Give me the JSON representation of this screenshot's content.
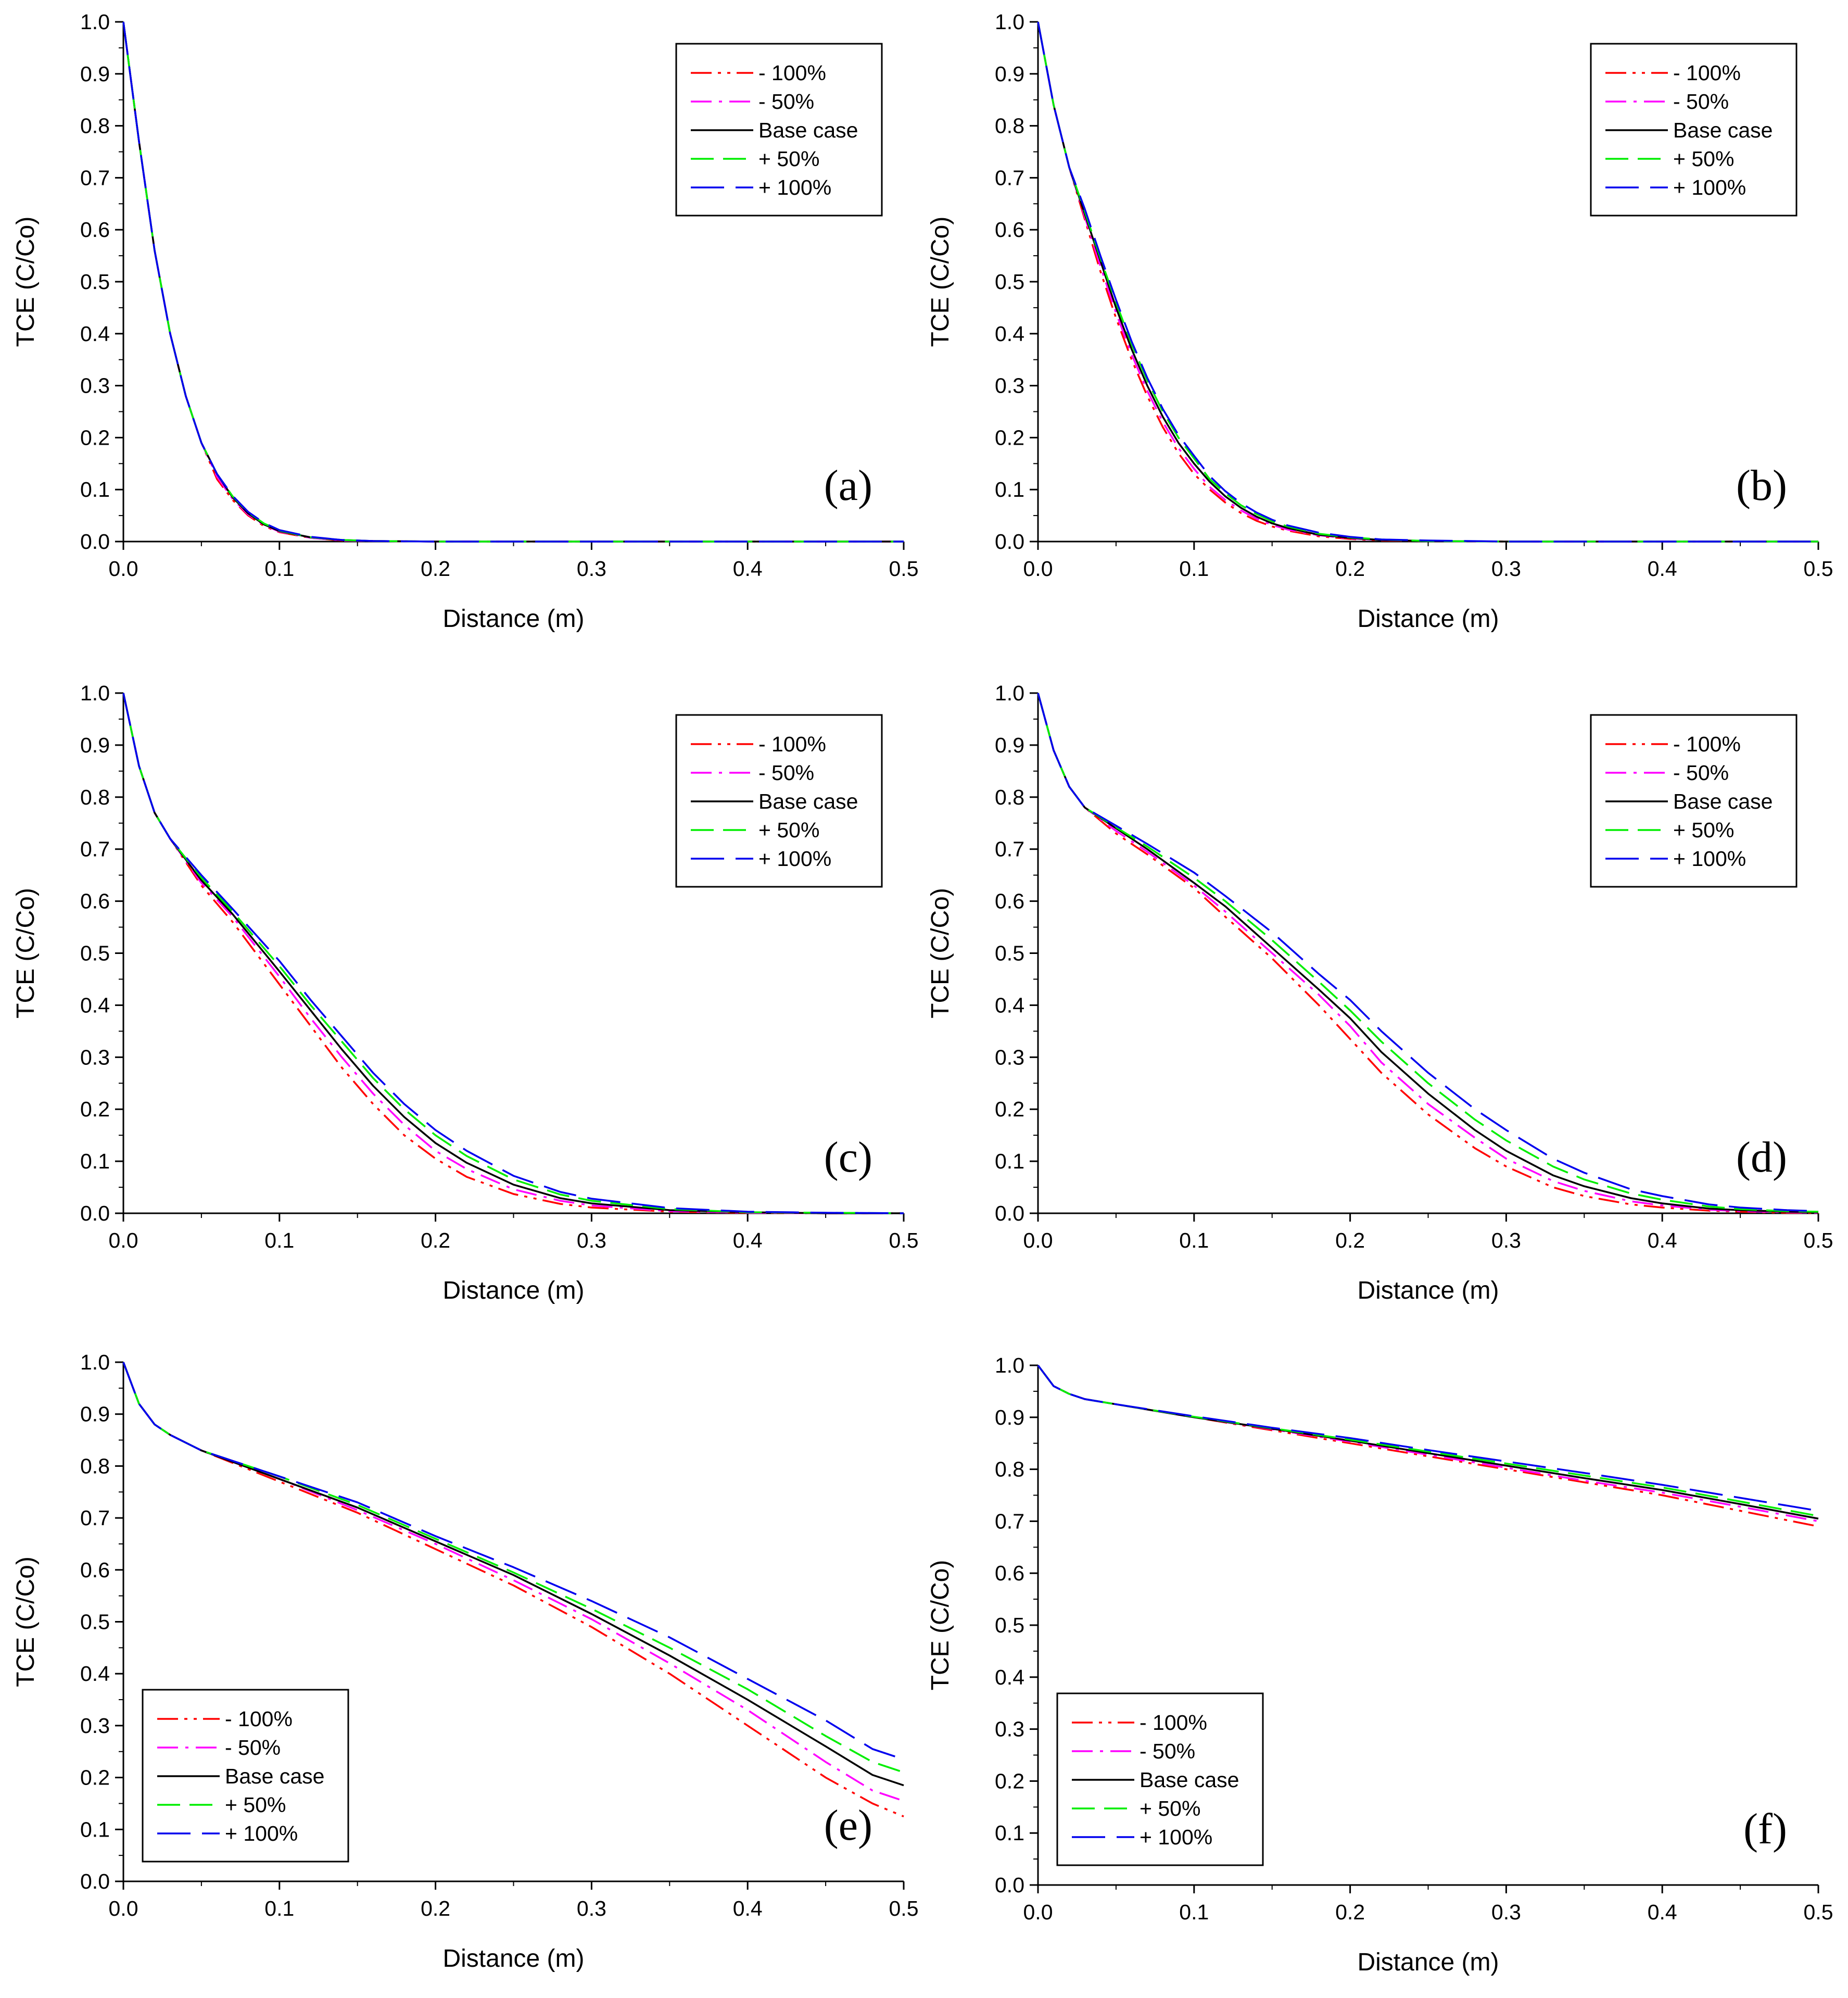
{
  "figure": {
    "series_styles": [
      {
        "name": "- 100%",
        "color": "#ff0000",
        "dash": "dashdotdot"
      },
      {
        "name": "- 50%",
        "color": "#ff00ff",
        "dash": "dashdot"
      },
      {
        "name": "Base case",
        "color": "#000000",
        "dash": "solid"
      },
      {
        "name": "+ 50%",
        "color": "#00ee00",
        "dash": "dashed"
      },
      {
        "name": "+ 100%",
        "color": "#0000ee",
        "dash": "longdash"
      }
    ]
  },
  "chart_data": [
    {
      "type": "line",
      "panel": "(a)",
      "xlabel": "Distance (m)",
      "ylabel": "TCE (C/Co)",
      "xlim": [
        0,
        0.5
      ],
      "ylim": [
        0,
        1.0
      ],
      "xticks": [
        "0.0",
        "0.1",
        "0.2",
        "0.3",
        "0.4",
        "0.5"
      ],
      "yticks": [
        "0.0",
        "0.1",
        "0.2",
        "0.3",
        "0.4",
        "0.5",
        "0.6",
        "0.7",
        "0.8",
        "0.9",
        "1.0"
      ],
      "legend_position": "top-right",
      "x": [
        0,
        0.01,
        0.02,
        0.03,
        0.04,
        0.05,
        0.06,
        0.07,
        0.08,
        0.09,
        0.1,
        0.12,
        0.14,
        0.16,
        0.2,
        0.3,
        0.4,
        0.5
      ],
      "series": [
        {
          "name": "- 100%",
          "values": [
            1.0,
            0.77,
            0.56,
            0.4,
            0.28,
            0.19,
            0.12,
            0.08,
            0.05,
            0.03,
            0.018,
            0.007,
            0.002,
            0.001,
            0,
            0,
            0,
            0
          ]
        },
        {
          "name": "- 50%",
          "values": [
            1.0,
            0.77,
            0.56,
            0.4,
            0.28,
            0.19,
            0.125,
            0.082,
            0.052,
            0.032,
            0.019,
            0.007,
            0.002,
            0.001,
            0,
            0,
            0,
            0
          ]
        },
        {
          "name": "Base case",
          "values": [
            1.0,
            0.77,
            0.56,
            0.4,
            0.28,
            0.19,
            0.13,
            0.085,
            0.054,
            0.033,
            0.02,
            0.008,
            0.003,
            0.001,
            0,
            0,
            0,
            0
          ]
        },
        {
          "name": "+ 50%",
          "values": [
            1.0,
            0.77,
            0.56,
            0.4,
            0.28,
            0.19,
            0.13,
            0.087,
            0.056,
            0.035,
            0.021,
            0.008,
            0.003,
            0.001,
            0,
            0,
            0,
            0
          ]
        },
        {
          "name": "+ 100%",
          "values": [
            1.0,
            0.77,
            0.56,
            0.4,
            0.28,
            0.19,
            0.13,
            0.088,
            0.057,
            0.036,
            0.022,
            0.009,
            0.003,
            0.001,
            0,
            0,
            0,
            0
          ]
        }
      ]
    },
    {
      "type": "line",
      "panel": "(b)",
      "xlabel": "Distance (m)",
      "ylabel": "TCE (C/Co)",
      "xlim": [
        0,
        0.5
      ],
      "ylim": [
        0,
        1.0
      ],
      "xticks": [
        "0.0",
        "0.1",
        "0.2",
        "0.3",
        "0.4",
        "0.5"
      ],
      "yticks": [
        "0.0",
        "0.1",
        "0.2",
        "0.3",
        "0.4",
        "0.5",
        "0.6",
        "0.7",
        "0.8",
        "0.9",
        "1.0"
      ],
      "legend_position": "top-right",
      "x": [
        0,
        0.01,
        0.02,
        0.03,
        0.04,
        0.05,
        0.06,
        0.07,
        0.08,
        0.09,
        0.1,
        0.11,
        0.12,
        0.13,
        0.14,
        0.15,
        0.16,
        0.18,
        0.2,
        0.22,
        0.25,
        0.3,
        0.4,
        0.5
      ],
      "series": [
        {
          "name": "- 100%",
          "values": [
            1.0,
            0.84,
            0.72,
            0.62,
            0.52,
            0.43,
            0.35,
            0.28,
            0.22,
            0.17,
            0.13,
            0.1,
            0.075,
            0.055,
            0.04,
            0.029,
            0.021,
            0.01,
            0.005,
            0.002,
            0.001,
            0,
            0,
            0
          ]
        },
        {
          "name": "- 50%",
          "values": [
            1.0,
            0.84,
            0.72,
            0.625,
            0.53,
            0.44,
            0.36,
            0.29,
            0.23,
            0.18,
            0.14,
            0.105,
            0.08,
            0.06,
            0.044,
            0.032,
            0.023,
            0.012,
            0.006,
            0.003,
            0.001,
            0,
            0,
            0
          ]
        },
        {
          "name": "Base case",
          "values": [
            1.0,
            0.84,
            0.72,
            0.63,
            0.54,
            0.45,
            0.37,
            0.3,
            0.24,
            0.19,
            0.15,
            0.115,
            0.087,
            0.065,
            0.048,
            0.035,
            0.026,
            0.013,
            0.007,
            0.003,
            0.001,
            0,
            0,
            0
          ]
        },
        {
          "name": "+ 50%",
          "values": [
            1.0,
            0.84,
            0.72,
            0.635,
            0.545,
            0.46,
            0.38,
            0.31,
            0.25,
            0.2,
            0.16,
            0.12,
            0.093,
            0.07,
            0.053,
            0.039,
            0.029,
            0.015,
            0.008,
            0.004,
            0.001,
            0,
            0,
            0
          ]
        },
        {
          "name": "+ 100%",
          "values": [
            1.0,
            0.84,
            0.72,
            0.64,
            0.55,
            0.465,
            0.385,
            0.315,
            0.255,
            0.205,
            0.165,
            0.126,
            0.097,
            0.074,
            0.056,
            0.042,
            0.031,
            0.017,
            0.009,
            0.004,
            0.002,
            0,
            0,
            0
          ]
        }
      ]
    },
    {
      "type": "line",
      "panel": "(c)",
      "xlabel": "Distance (m)",
      "ylabel": "TCE (C/Co)",
      "xlim": [
        0,
        0.5
      ],
      "ylim": [
        0,
        1.0
      ],
      "xticks": [
        "0.0",
        "0.1",
        "0.2",
        "0.3",
        "0.4",
        "0.5"
      ],
      "yticks": [
        "0.0",
        "0.1",
        "0.2",
        "0.3",
        "0.4",
        "0.5",
        "0.6",
        "0.7",
        "0.8",
        "0.9",
        "1.0"
      ],
      "legend_position": "top-right",
      "x": [
        0,
        0.01,
        0.02,
        0.03,
        0.05,
        0.07,
        0.1,
        0.12,
        0.14,
        0.16,
        0.18,
        0.2,
        0.22,
        0.25,
        0.28,
        0.3,
        0.35,
        0.4,
        0.45,
        0.5
      ],
      "series": [
        {
          "name": "- 100%",
          "values": [
            1.0,
            0.86,
            0.77,
            0.72,
            0.63,
            0.56,
            0.44,
            0.36,
            0.28,
            0.21,
            0.15,
            0.105,
            0.07,
            0.037,
            0.018,
            0.011,
            0.003,
            0.001,
            0,
            0
          ]
        },
        {
          "name": "- 50%",
          "values": [
            1.0,
            0.86,
            0.77,
            0.72,
            0.635,
            0.57,
            0.455,
            0.375,
            0.3,
            0.23,
            0.17,
            0.12,
            0.085,
            0.046,
            0.024,
            0.015,
            0.004,
            0.001,
            0,
            0
          ]
        },
        {
          "name": "Base case",
          "values": [
            1.0,
            0.86,
            0.77,
            0.72,
            0.64,
            0.575,
            0.465,
            0.39,
            0.315,
            0.245,
            0.185,
            0.135,
            0.097,
            0.055,
            0.029,
            0.019,
            0.006,
            0.002,
            0,
            0
          ]
        },
        {
          "name": "+ 50%",
          "values": [
            1.0,
            0.86,
            0.77,
            0.72,
            0.645,
            0.58,
            0.475,
            0.4,
            0.33,
            0.26,
            0.2,
            0.15,
            0.11,
            0.065,
            0.036,
            0.024,
            0.008,
            0.002,
            0.001,
            0
          ]
        },
        {
          "name": "+ 100%",
          "values": [
            1.0,
            0.86,
            0.77,
            0.72,
            0.65,
            0.585,
            0.485,
            0.41,
            0.34,
            0.27,
            0.21,
            0.16,
            0.12,
            0.072,
            0.041,
            0.028,
            0.01,
            0.003,
            0.001,
            0
          ]
        }
      ]
    },
    {
      "type": "line",
      "panel": "(d)",
      "xlabel": "Distance (m)",
      "ylabel": "TCE (C/Co)",
      "xlim": [
        0,
        0.5
      ],
      "ylim": [
        0,
        1.0
      ],
      "xticks": [
        "0.0",
        "0.1",
        "0.2",
        "0.3",
        "0.4",
        "0.5"
      ],
      "yticks": [
        "0.0",
        "0.1",
        "0.2",
        "0.3",
        "0.4",
        "0.5",
        "0.6",
        "0.7",
        "0.8",
        "0.9",
        "1.0"
      ],
      "legend_position": "top-right",
      "x": [
        0,
        0.01,
        0.02,
        0.03,
        0.05,
        0.07,
        0.1,
        0.12,
        0.15,
        0.18,
        0.2,
        0.22,
        0.25,
        0.28,
        0.3,
        0.33,
        0.35,
        0.38,
        0.4,
        0.43,
        0.45,
        0.48,
        0.5
      ],
      "series": [
        {
          "name": "- 100%",
          "values": [
            1.0,
            0.89,
            0.82,
            0.78,
            0.73,
            0.69,
            0.625,
            0.57,
            0.49,
            0.4,
            0.335,
            0.27,
            0.19,
            0.125,
            0.09,
            0.05,
            0.033,
            0.017,
            0.011,
            0.005,
            0.003,
            0.001,
            0.001
          ]
        },
        {
          "name": "- 50%",
          "values": [
            1.0,
            0.89,
            0.82,
            0.78,
            0.735,
            0.695,
            0.63,
            0.58,
            0.5,
            0.42,
            0.36,
            0.29,
            0.21,
            0.145,
            0.105,
            0.062,
            0.043,
            0.023,
            0.015,
            0.007,
            0.004,
            0.002,
            0.001
          ]
        },
        {
          "name": "Base case",
          "values": [
            1.0,
            0.89,
            0.82,
            0.78,
            0.74,
            0.7,
            0.635,
            0.59,
            0.51,
            0.43,
            0.375,
            0.31,
            0.23,
            0.16,
            0.12,
            0.073,
            0.052,
            0.029,
            0.019,
            0.009,
            0.006,
            0.003,
            0.002
          ]
        },
        {
          "name": "+ 50%",
          "values": [
            1.0,
            0.89,
            0.82,
            0.78,
            0.742,
            0.705,
            0.645,
            0.6,
            0.525,
            0.445,
            0.39,
            0.33,
            0.25,
            0.18,
            0.14,
            0.09,
            0.065,
            0.038,
            0.026,
            0.013,
            0.008,
            0.004,
            0.003
          ]
        },
        {
          "name": "+ 100%",
          "values": [
            1.0,
            0.89,
            0.82,
            0.78,
            0.745,
            0.71,
            0.655,
            0.61,
            0.54,
            0.46,
            0.41,
            0.35,
            0.27,
            0.2,
            0.16,
            0.105,
            0.078,
            0.046,
            0.033,
            0.017,
            0.011,
            0.006,
            0.004
          ]
        }
      ]
    },
    {
      "type": "line",
      "panel": "(e)",
      "xlabel": "Distance (m)",
      "ylabel": "TCE (C/Co)",
      "xlim": [
        0,
        0.5
      ],
      "ylim": [
        0,
        1.0
      ],
      "xticks": [
        "0.0",
        "0.1",
        "0.2",
        "0.3",
        "0.4",
        "0.5"
      ],
      "yticks": [
        "0.0",
        "0.1",
        "0.2",
        "0.3",
        "0.4",
        "0.5",
        "0.6",
        "0.7",
        "0.8",
        "0.9",
        "1.0"
      ],
      "legend_position": "bottom-left",
      "x": [
        0,
        0.01,
        0.02,
        0.03,
        0.05,
        0.1,
        0.15,
        0.2,
        0.25,
        0.3,
        0.35,
        0.4,
        0.45,
        0.48,
        0.5
      ],
      "series": [
        {
          "name": "- 100%",
          "values": [
            1.0,
            0.92,
            0.88,
            0.86,
            0.83,
            0.77,
            0.71,
            0.64,
            0.57,
            0.49,
            0.4,
            0.3,
            0.2,
            0.15,
            0.125
          ]
        },
        {
          "name": "- 50%",
          "values": [
            1.0,
            0.92,
            0.88,
            0.86,
            0.83,
            0.775,
            0.715,
            0.65,
            0.58,
            0.505,
            0.42,
            0.33,
            0.23,
            0.175,
            0.155
          ]
        },
        {
          "name": "Base case",
          "values": [
            1.0,
            0.92,
            0.88,
            0.86,
            0.83,
            0.775,
            0.72,
            0.655,
            0.59,
            0.515,
            0.435,
            0.35,
            0.26,
            0.205,
            0.185
          ]
        },
        {
          "name": "+ 50%",
          "values": [
            1.0,
            0.92,
            0.88,
            0.86,
            0.83,
            0.78,
            0.725,
            0.66,
            0.595,
            0.525,
            0.45,
            0.37,
            0.28,
            0.23,
            0.21
          ]
        },
        {
          "name": "+ 100%",
          "values": [
            1.0,
            0.92,
            0.88,
            0.86,
            0.83,
            0.78,
            0.73,
            0.665,
            0.605,
            0.54,
            0.47,
            0.39,
            0.31,
            0.255,
            0.235
          ]
        }
      ]
    },
    {
      "type": "line",
      "panel": "(f)",
      "xlabel": "Distance (m)",
      "ylabel": "TCE (C/Co)",
      "xlim": [
        0,
        0.5
      ],
      "ylim": [
        0,
        1.0
      ],
      "xticks": [
        "0.0",
        "0.1",
        "0.2",
        "0.3",
        "0.4",
        "0.5"
      ],
      "yticks": [
        "0.0",
        "0.1",
        "0.2",
        "0.3",
        "0.4",
        "0.5",
        "0.6",
        "0.7",
        "0.8",
        "0.9",
        "1.0"
      ],
      "legend_position": "bottom-left",
      "x": [
        0,
        0.01,
        0.02,
        0.03,
        0.05,
        0.1,
        0.15,
        0.2,
        0.25,
        0.3,
        0.35,
        0.4,
        0.45,
        0.5
      ],
      "series": [
        {
          "name": "- 100%",
          "values": [
            1.0,
            0.96,
            0.945,
            0.935,
            0.925,
            0.9,
            0.875,
            0.85,
            0.825,
            0.8,
            0.775,
            0.75,
            0.72,
            0.69
          ]
        },
        {
          "name": "- 50%",
          "values": [
            1.0,
            0.96,
            0.945,
            0.935,
            0.925,
            0.9,
            0.877,
            0.853,
            0.828,
            0.803,
            0.778,
            0.755,
            0.728,
            0.7
          ]
        },
        {
          "name": "Base case",
          "values": [
            1.0,
            0.96,
            0.945,
            0.935,
            0.925,
            0.9,
            0.878,
            0.855,
            0.831,
            0.807,
            0.783,
            0.76,
            0.733,
            0.705
          ]
        },
        {
          "name": "+ 50%",
          "values": [
            1.0,
            0.96,
            0.945,
            0.935,
            0.925,
            0.901,
            0.879,
            0.857,
            0.834,
            0.811,
            0.788,
            0.765,
            0.738,
            0.71
          ]
        },
        {
          "name": "+ 100%",
          "values": [
            1.0,
            0.96,
            0.945,
            0.935,
            0.925,
            0.902,
            0.88,
            0.86,
            0.837,
            0.815,
            0.793,
            0.77,
            0.745,
            0.72
          ]
        }
      ]
    }
  ]
}
